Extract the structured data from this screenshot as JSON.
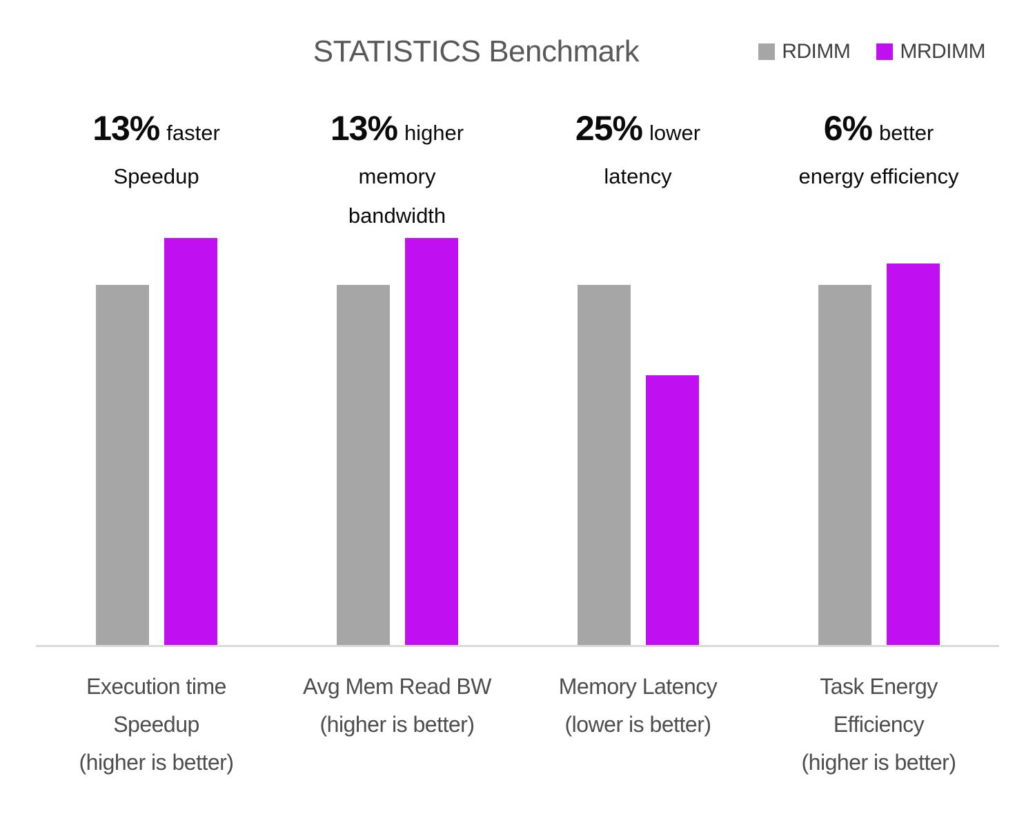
{
  "title": "STATISTICS Benchmark",
  "colors": {
    "rdimm": "#A6A6A6",
    "mrdimm": "#C00FF0",
    "axis_line": "#D9D9D9",
    "title_text": "#595959",
    "label_text": "#4D4D4D",
    "annotation_text": "#0A0A0A"
  },
  "legend": {
    "items": [
      {
        "label": "RDIMM",
        "color": "#A6A6A6"
      },
      {
        "label": "MRDIMM",
        "color": "#C00FF0"
      }
    ]
  },
  "annotations": [
    {
      "stat": "13%",
      "qualifier": "faster",
      "lines": [
        "Speedup"
      ]
    },
    {
      "stat": "13%",
      "qualifier": "higher",
      "lines": [
        "memory",
        "bandwidth"
      ]
    },
    {
      "stat": "25%",
      "qualifier": "lower",
      "lines": [
        "latency"
      ]
    },
    {
      "stat": "6%",
      "qualifier": "better",
      "lines": [
        "energy efficiency"
      ]
    }
  ],
  "category_lines": [
    [
      "Execution time",
      "Speedup",
      "(higher is better)"
    ],
    [
      "Avg Mem Read BW",
      "(higher is better)",
      ""
    ],
    [
      "Memory Latency",
      "(lower is better)",
      ""
    ],
    [
      "Task Energy",
      "Efficiency",
      "(higher is better)"
    ]
  ],
  "chart_data": {
    "type": "bar",
    "title": "STATISTICS Benchmark",
    "categories": [
      "Execution time Speedup (higher is better)",
      "Avg Mem Read BW (higher is better)",
      "Memory Latency (lower is better)",
      "Task Energy Efficiency (higher is better)"
    ],
    "series": [
      {
        "name": "RDIMM",
        "color": "#A6A6A6",
        "values": [
          1.0,
          1.0,
          1.0,
          1.0
        ]
      },
      {
        "name": "MRDIMM",
        "color": "#C00FF0",
        "values": [
          1.13,
          1.13,
          0.75,
          1.06
        ]
      }
    ],
    "xlabel": "",
    "ylabel": "",
    "ylim": [
      0,
      1.3
    ],
    "grid": false,
    "y_axis_visible": false,
    "legend_position": "top-right",
    "baseline_normalized_to": "RDIMM = 1.0"
  }
}
